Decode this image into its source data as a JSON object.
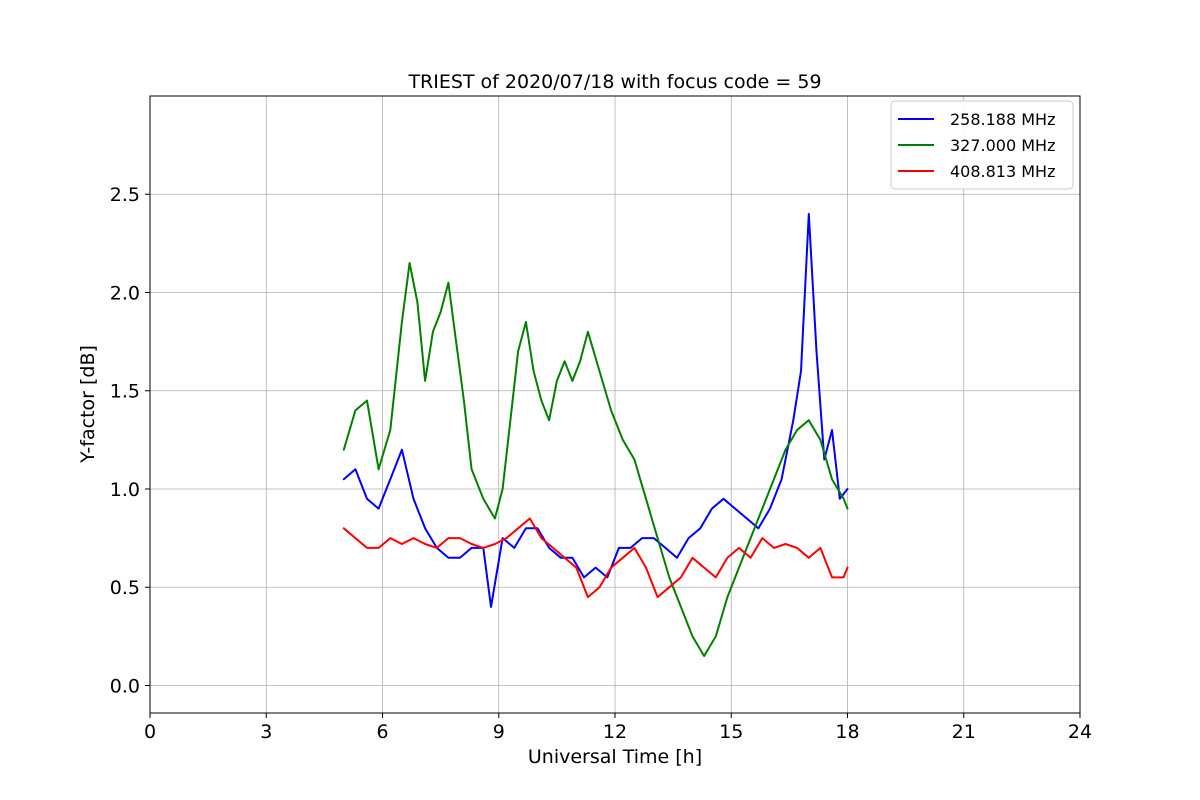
{
  "chart_data": {
    "type": "line",
    "title": "TRIEST of 2020/07/18 with focus code = 59",
    "xlabel": "Universal Time [h]",
    "ylabel": "Y-factor [dB]",
    "xlim": [
      0,
      24
    ],
    "ylim": [
      -0.14,
      3.0
    ],
    "xticks": [
      0,
      3,
      6,
      9,
      12,
      15,
      18,
      21,
      24
    ],
    "yticks": [
      0.0,
      0.5,
      1.0,
      1.5,
      2.0,
      2.5
    ],
    "xtick_labels": [
      "0",
      "3",
      "6",
      "9",
      "12",
      "15",
      "18",
      "21",
      "24"
    ],
    "ytick_labels": [
      "0.0",
      "0.5",
      "1.0",
      "1.5",
      "2.0",
      "2.5"
    ],
    "grid": true,
    "legend_position": "top-right",
    "series": [
      {
        "name": "258.188 MHz",
        "color": "#0000ff",
        "x": [
          5.0,
          5.3,
          5.6,
          5.9,
          6.2,
          6.5,
          6.8,
          7.1,
          7.4,
          7.7,
          8.0,
          8.3,
          8.6,
          8.8,
          9.1,
          9.4,
          9.7,
          10.0,
          10.3,
          10.6,
          10.9,
          11.2,
          11.5,
          11.8,
          12.1,
          12.4,
          12.7,
          13.0,
          13.3,
          13.6,
          13.9,
          14.2,
          14.5,
          14.8,
          15.1,
          15.4,
          15.7,
          16.0,
          16.3,
          16.6,
          16.8,
          17.0,
          17.2,
          17.4,
          17.6,
          17.8,
          18.0
        ],
        "y": [
          1.05,
          1.1,
          0.95,
          0.9,
          1.05,
          1.2,
          0.95,
          0.8,
          0.7,
          0.65,
          0.65,
          0.7,
          0.7,
          0.4,
          0.75,
          0.7,
          0.8,
          0.8,
          0.7,
          0.65,
          0.65,
          0.55,
          0.6,
          0.55,
          0.7,
          0.7,
          0.75,
          0.75,
          0.7,
          0.65,
          0.75,
          0.8,
          0.9,
          0.95,
          0.9,
          0.85,
          0.8,
          0.9,
          1.05,
          1.35,
          1.6,
          2.4,
          1.7,
          1.15,
          1.3,
          0.95,
          1.0
        ]
      },
      {
        "name": "327.000 MHz",
        "color": "#008000",
        "x": [
          5.0,
          5.3,
          5.6,
          5.9,
          6.2,
          6.5,
          6.7,
          6.9,
          7.1,
          7.3,
          7.5,
          7.7,
          7.9,
          8.1,
          8.3,
          8.6,
          8.9,
          9.1,
          9.3,
          9.5,
          9.7,
          9.9,
          10.1,
          10.3,
          10.5,
          10.7,
          10.9,
          11.1,
          11.3,
          11.6,
          11.9,
          12.2,
          12.5,
          12.8,
          13.1,
          13.4,
          13.7,
          14.0,
          14.3,
          14.6,
          14.9,
          15.2,
          15.5,
          15.8,
          16.1,
          16.4,
          16.7,
          17.0,
          17.3,
          17.6,
          17.9,
          18.0
        ],
        "y": [
          1.2,
          1.4,
          1.45,
          1.1,
          1.3,
          1.85,
          2.15,
          1.95,
          1.55,
          1.8,
          1.9,
          2.05,
          1.75,
          1.45,
          1.1,
          0.95,
          0.85,
          1.0,
          1.35,
          1.7,
          1.85,
          1.6,
          1.45,
          1.35,
          1.55,
          1.65,
          1.55,
          1.65,
          1.8,
          1.6,
          1.4,
          1.25,
          1.15,
          0.95,
          0.75,
          0.55,
          0.4,
          0.25,
          0.15,
          0.25,
          0.45,
          0.6,
          0.75,
          0.9,
          1.05,
          1.2,
          1.3,
          1.35,
          1.25,
          1.05,
          0.95,
          0.9
        ]
      },
      {
        "name": "408.813 MHz",
        "color": "#ff0000",
        "x": [
          5.0,
          5.3,
          5.6,
          5.9,
          6.2,
          6.5,
          6.8,
          7.1,
          7.4,
          7.7,
          8.0,
          8.3,
          8.6,
          8.9,
          9.2,
          9.5,
          9.8,
          10.1,
          10.4,
          10.7,
          11.0,
          11.3,
          11.6,
          11.9,
          12.2,
          12.5,
          12.8,
          13.1,
          13.4,
          13.7,
          14.0,
          14.3,
          14.6,
          14.9,
          15.2,
          15.5,
          15.8,
          16.1,
          16.4,
          16.7,
          17.0,
          17.3,
          17.6,
          17.9,
          18.0
        ],
        "y": [
          0.8,
          0.75,
          0.7,
          0.7,
          0.75,
          0.72,
          0.75,
          0.72,
          0.7,
          0.75,
          0.75,
          0.72,
          0.7,
          0.72,
          0.75,
          0.8,
          0.85,
          0.75,
          0.7,
          0.65,
          0.6,
          0.45,
          0.5,
          0.6,
          0.65,
          0.7,
          0.6,
          0.45,
          0.5,
          0.55,
          0.65,
          0.6,
          0.55,
          0.65,
          0.7,
          0.65,
          0.75,
          0.7,
          0.72,
          0.7,
          0.65,
          0.7,
          0.55,
          0.55,
          0.6
        ]
      }
    ]
  }
}
